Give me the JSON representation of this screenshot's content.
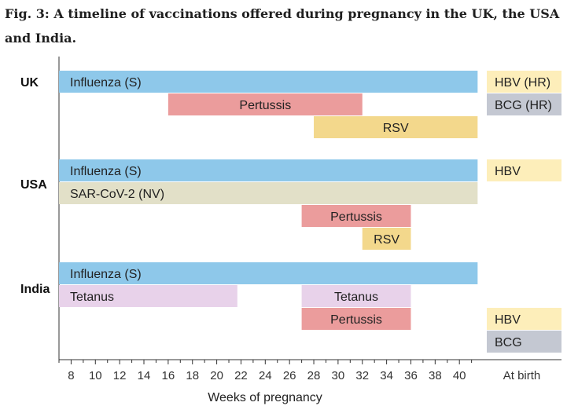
{
  "title": "Fig. 3: A timeline of vaccinations offered during pregnancy in the UK, the USA and India.",
  "chart_data": {
    "type": "gantt",
    "title": "Fig. 3: A timeline of vaccinations offered during pregnancy in the UK, the USA and India.",
    "xlabel": "Weeks of pregnancy",
    "x_range": [
      7,
      41.5
    ],
    "x_ticks": [
      8,
      10,
      12,
      14,
      16,
      18,
      20,
      22,
      24,
      26,
      28,
      30,
      32,
      34,
      36,
      38,
      40
    ],
    "birth_label": "At birth",
    "colors": {
      "influenza": "#8ec8ea",
      "pertussis": "#eb9c9c",
      "rsv": "#f3d88c",
      "covid": "#e2e0c8",
      "tetanus": "#e8d2ea",
      "hbv": "#fdeeba",
      "bcg": "#c4c8d2"
    },
    "groups": [
      {
        "country": "UK",
        "rows": [
          {
            "bars": [
              {
                "label": "Influenza (S)",
                "start": 7,
                "end": 41.5,
                "color": "influenza",
                "align": "left"
              }
            ],
            "birth": {
              "label": "HBV (HR)",
              "color": "hbv"
            }
          },
          {
            "bars": [
              {
                "label": "Pertussis",
                "start": 16,
                "end": 32,
                "color": "pertussis",
                "align": "center"
              }
            ],
            "birth": {
              "label": "BCG (HR)",
              "color": "bcg"
            }
          },
          {
            "bars": [
              {
                "label": "RSV",
                "start": 28,
                "end": 41.5,
                "color": "rsv",
                "align": "center"
              }
            ]
          }
        ]
      },
      {
        "country": "USA",
        "rows": [
          {
            "bars": [
              {
                "label": "Influenza (S)",
                "start": 7,
                "end": 41.5,
                "color": "influenza",
                "align": "left"
              }
            ],
            "birth": {
              "label": "HBV",
              "color": "hbv"
            }
          },
          {
            "bars": [
              {
                "label": "SAR-CoV-2 (NV)",
                "start": 7,
                "end": 41.5,
                "color": "covid",
                "align": "left"
              }
            ]
          },
          {
            "bars": [
              {
                "label": "Pertussis",
                "start": 27,
                "end": 36,
                "color": "pertussis",
                "align": "center"
              }
            ]
          },
          {
            "bars": [
              {
                "label": "RSV",
                "start": 32,
                "end": 36,
                "color": "rsv",
                "align": "center"
              }
            ]
          }
        ]
      },
      {
        "country": "India",
        "rows": [
          {
            "bars": [
              {
                "label": "Influenza (S)",
                "start": 7,
                "end": 41.5,
                "color": "influenza",
                "align": "left"
              }
            ]
          },
          {
            "bars": [
              {
                "label": "Tetanus",
                "start": 7,
                "end": 21.7,
                "color": "tetanus",
                "align": "left"
              },
              {
                "label": "Tetanus",
                "start": 27,
                "end": 36,
                "color": "tetanus",
                "align": "center"
              }
            ]
          },
          {
            "bars": [
              {
                "label": "Pertussis",
                "start": 27,
                "end": 36,
                "color": "pertussis",
                "align": "center"
              }
            ],
            "birth": {
              "label": "HBV",
              "color": "hbv"
            }
          },
          {
            "birth": {
              "label": "BCG",
              "color": "bcg"
            }
          }
        ]
      }
    ]
  }
}
